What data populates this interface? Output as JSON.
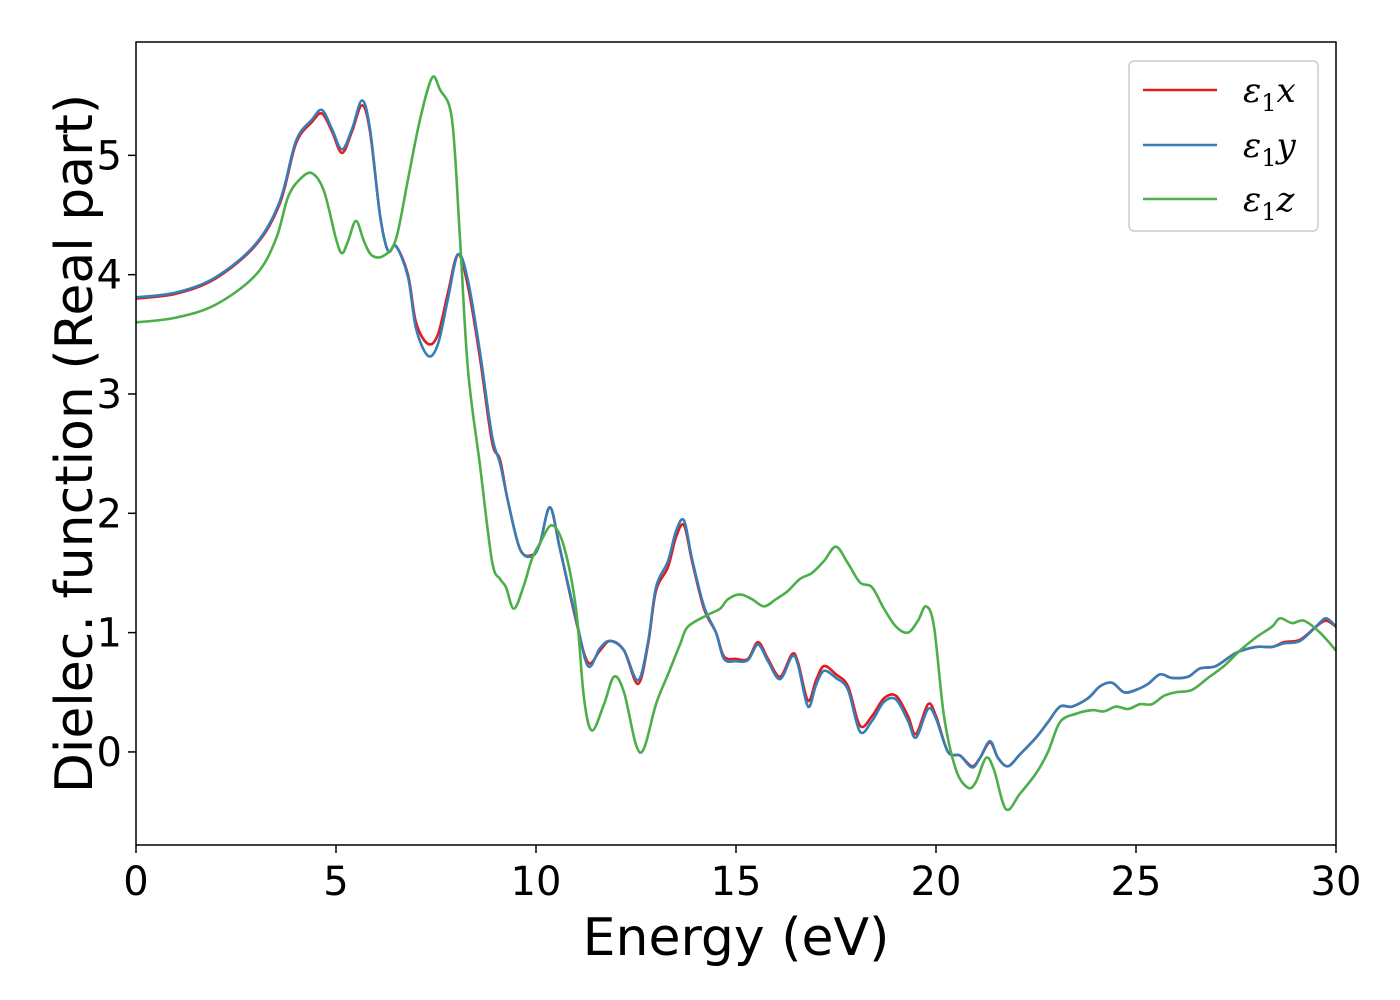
{
  "chart_data": {
    "type": "line",
    "xlabel": "Energy (eV)",
    "ylabel": "Dielec. function (Real part)",
    "xlim": [
      0,
      30
    ],
    "ylim": [
      -0.78,
      5.95
    ],
    "xticks": [
      0,
      5,
      10,
      15,
      20,
      25,
      30
    ],
    "yticks": [
      0,
      1,
      2,
      3,
      4,
      5
    ],
    "grid": false,
    "legend": {
      "placement": "top-right",
      "entries": [
        {
          "symbol": "ε",
          "sub": "1",
          "var": "x"
        },
        {
          "symbol": "ε",
          "sub": "1",
          "var": "y"
        },
        {
          "symbol": "ε",
          "sub": "1",
          "var": "z"
        }
      ]
    },
    "series": [
      {
        "color": "#e41a1c",
        "points": [
          [
            0,
            3.8
          ],
          [
            1,
            3.84
          ],
          [
            2,
            3.97
          ],
          [
            3,
            4.25
          ],
          [
            3.6,
            4.6
          ],
          [
            4,
            5.1
          ],
          [
            4.4,
            5.28
          ],
          [
            4.65,
            5.35
          ],
          [
            4.9,
            5.2
          ],
          [
            5.15,
            5.02
          ],
          [
            5.4,
            5.2
          ],
          [
            5.65,
            5.42
          ],
          [
            5.85,
            5.2
          ],
          [
            6.1,
            4.5
          ],
          [
            6.3,
            4.2
          ],
          [
            6.5,
            4.24
          ],
          [
            6.8,
            4.0
          ],
          [
            7.0,
            3.6
          ],
          [
            7.3,
            3.42
          ],
          [
            7.55,
            3.5
          ],
          [
            7.8,
            3.85
          ],
          [
            8.05,
            4.17
          ],
          [
            8.3,
            3.9
          ],
          [
            8.6,
            3.3
          ],
          [
            8.9,
            2.6
          ],
          [
            9.1,
            2.45
          ],
          [
            9.3,
            2.1
          ],
          [
            9.6,
            1.7
          ],
          [
            9.9,
            1.65
          ],
          [
            10.1,
            1.75
          ],
          [
            10.35,
            2.05
          ],
          [
            10.6,
            1.7
          ],
          [
            11.0,
            1.1
          ],
          [
            11.3,
            0.75
          ],
          [
            11.6,
            0.85
          ],
          [
            11.85,
            0.93
          ],
          [
            12.2,
            0.85
          ],
          [
            12.55,
            0.57
          ],
          [
            12.8,
            0.9
          ],
          [
            13.0,
            1.35
          ],
          [
            13.3,
            1.55
          ],
          [
            13.5,
            1.8
          ],
          [
            13.7,
            1.9
          ],
          [
            13.9,
            1.6
          ],
          [
            14.2,
            1.2
          ],
          [
            14.5,
            1.0
          ],
          [
            14.7,
            0.8
          ],
          [
            15.0,
            0.78
          ],
          [
            15.3,
            0.78
          ],
          [
            15.55,
            0.92
          ],
          [
            15.8,
            0.78
          ],
          [
            16.1,
            0.63
          ],
          [
            16.4,
            0.82
          ],
          [
            16.55,
            0.75
          ],
          [
            16.8,
            0.43
          ],
          [
            17.0,
            0.6
          ],
          [
            17.2,
            0.72
          ],
          [
            17.5,
            0.65
          ],
          [
            17.8,
            0.55
          ],
          [
            18.1,
            0.22
          ],
          [
            18.4,
            0.3
          ],
          [
            18.7,
            0.45
          ],
          [
            19.0,
            0.47
          ],
          [
            19.3,
            0.3
          ],
          [
            19.5,
            0.15
          ],
          [
            19.8,
            0.4
          ],
          [
            20.0,
            0.3
          ],
          [
            20.3,
            0.0
          ],
          [
            20.6,
            -0.03
          ],
          [
            20.9,
            -0.12
          ],
          [
            21.1,
            -0.05
          ],
          [
            21.35,
            0.08
          ],
          [
            21.55,
            -0.05
          ],
          [
            21.8,
            -0.12
          ],
          [
            22.1,
            -0.02
          ],
          [
            22.5,
            0.12
          ],
          [
            22.8,
            0.25
          ],
          [
            23.1,
            0.38
          ],
          [
            23.4,
            0.38
          ],
          [
            23.8,
            0.45
          ],
          [
            24.1,
            0.55
          ],
          [
            24.4,
            0.58
          ],
          [
            24.7,
            0.5
          ],
          [
            25.0,
            0.52
          ],
          [
            25.3,
            0.57
          ],
          [
            25.6,
            0.65
          ],
          [
            25.9,
            0.62
          ],
          [
            26.3,
            0.63
          ],
          [
            26.6,
            0.7
          ],
          [
            27.0,
            0.72
          ],
          [
            27.5,
            0.83
          ],
          [
            28.0,
            0.88
          ],
          [
            28.4,
            0.88
          ],
          [
            28.7,
            0.92
          ],
          [
            29.1,
            0.94
          ],
          [
            29.5,
            1.05
          ],
          [
            29.75,
            1.1
          ],
          [
            30.0,
            1.05
          ]
        ]
      },
      {
        "color": "#377eb8",
        "points": [
          [
            0,
            3.81
          ],
          [
            1,
            3.85
          ],
          [
            2,
            3.98
          ],
          [
            3,
            4.26
          ],
          [
            3.6,
            4.62
          ],
          [
            4,
            5.12
          ],
          [
            4.4,
            5.3
          ],
          [
            4.65,
            5.38
          ],
          [
            4.9,
            5.22
          ],
          [
            5.15,
            5.05
          ],
          [
            5.4,
            5.22
          ],
          [
            5.65,
            5.46
          ],
          [
            5.85,
            5.22
          ],
          [
            6.1,
            4.5
          ],
          [
            6.3,
            4.2
          ],
          [
            6.5,
            4.24
          ],
          [
            6.8,
            3.98
          ],
          [
            7.0,
            3.55
          ],
          [
            7.3,
            3.32
          ],
          [
            7.55,
            3.42
          ],
          [
            7.8,
            3.8
          ],
          [
            8.05,
            4.17
          ],
          [
            8.3,
            3.95
          ],
          [
            8.6,
            3.35
          ],
          [
            8.9,
            2.65
          ],
          [
            9.1,
            2.42
          ],
          [
            9.3,
            2.1
          ],
          [
            9.6,
            1.7
          ],
          [
            9.9,
            1.64
          ],
          [
            10.1,
            1.75
          ],
          [
            10.35,
            2.05
          ],
          [
            10.6,
            1.7
          ],
          [
            11.0,
            1.12
          ],
          [
            11.3,
            0.72
          ],
          [
            11.6,
            0.87
          ],
          [
            11.85,
            0.93
          ],
          [
            12.2,
            0.85
          ],
          [
            12.55,
            0.6
          ],
          [
            12.8,
            0.92
          ],
          [
            13.0,
            1.38
          ],
          [
            13.3,
            1.6
          ],
          [
            13.5,
            1.85
          ],
          [
            13.7,
            1.94
          ],
          [
            13.9,
            1.62
          ],
          [
            14.2,
            1.22
          ],
          [
            14.5,
            1.0
          ],
          [
            14.7,
            0.78
          ],
          [
            15.0,
            0.76
          ],
          [
            15.3,
            0.77
          ],
          [
            15.55,
            0.9
          ],
          [
            15.8,
            0.76
          ],
          [
            16.1,
            0.61
          ],
          [
            16.4,
            0.8
          ],
          [
            16.55,
            0.73
          ],
          [
            16.8,
            0.38
          ],
          [
            17.0,
            0.56
          ],
          [
            17.2,
            0.68
          ],
          [
            17.5,
            0.62
          ],
          [
            17.8,
            0.52
          ],
          [
            18.1,
            0.17
          ],
          [
            18.4,
            0.26
          ],
          [
            18.7,
            0.42
          ],
          [
            19.0,
            0.44
          ],
          [
            19.3,
            0.26
          ],
          [
            19.5,
            0.12
          ],
          [
            19.8,
            0.36
          ],
          [
            20.0,
            0.28
          ],
          [
            20.3,
            0.0
          ],
          [
            20.6,
            -0.03
          ],
          [
            20.9,
            -0.13
          ],
          [
            21.1,
            -0.05
          ],
          [
            21.35,
            0.09
          ],
          [
            21.55,
            -0.05
          ],
          [
            21.8,
            -0.12
          ],
          [
            22.1,
            -0.02
          ],
          [
            22.5,
            0.12
          ],
          [
            22.8,
            0.25
          ],
          [
            23.1,
            0.38
          ],
          [
            23.4,
            0.38
          ],
          [
            23.8,
            0.45
          ],
          [
            24.1,
            0.55
          ],
          [
            24.4,
            0.58
          ],
          [
            24.7,
            0.5
          ],
          [
            25.0,
            0.52
          ],
          [
            25.3,
            0.57
          ],
          [
            25.6,
            0.65
          ],
          [
            25.9,
            0.62
          ],
          [
            26.3,
            0.63
          ],
          [
            26.6,
            0.7
          ],
          [
            27.0,
            0.72
          ],
          [
            27.5,
            0.83
          ],
          [
            28.0,
            0.88
          ],
          [
            28.4,
            0.88
          ],
          [
            28.7,
            0.91
          ],
          [
            29.1,
            0.93
          ],
          [
            29.5,
            1.05
          ],
          [
            29.75,
            1.12
          ],
          [
            30.0,
            1.05
          ]
        ]
      },
      {
        "color": "#4daf4a",
        "points": [
          [
            0,
            3.6
          ],
          [
            1,
            3.64
          ],
          [
            2,
            3.75
          ],
          [
            3,
            4.0
          ],
          [
            3.5,
            4.3
          ],
          [
            3.8,
            4.65
          ],
          [
            4.1,
            4.8
          ],
          [
            4.4,
            4.85
          ],
          [
            4.7,
            4.7
          ],
          [
            5.0,
            4.3
          ],
          [
            5.15,
            4.18
          ],
          [
            5.3,
            4.28
          ],
          [
            5.5,
            4.45
          ],
          [
            5.7,
            4.28
          ],
          [
            5.9,
            4.16
          ],
          [
            6.2,
            4.16
          ],
          [
            6.5,
            4.3
          ],
          [
            6.8,
            4.8
          ],
          [
            7.1,
            5.3
          ],
          [
            7.4,
            5.65
          ],
          [
            7.6,
            5.55
          ],
          [
            7.9,
            5.3
          ],
          [
            8.1,
            4.3
          ],
          [
            8.3,
            3.2
          ],
          [
            8.6,
            2.4
          ],
          [
            8.9,
            1.6
          ],
          [
            9.1,
            1.45
          ],
          [
            9.25,
            1.38
          ],
          [
            9.45,
            1.2
          ],
          [
            9.7,
            1.4
          ],
          [
            9.9,
            1.62
          ],
          [
            10.1,
            1.75
          ],
          [
            10.4,
            1.9
          ],
          [
            10.7,
            1.72
          ],
          [
            11.0,
            1.2
          ],
          [
            11.2,
            0.45
          ],
          [
            11.4,
            0.18
          ],
          [
            11.7,
            0.4
          ],
          [
            11.95,
            0.63
          ],
          [
            12.2,
            0.5
          ],
          [
            12.5,
            0.06
          ],
          [
            12.7,
            0.03
          ],
          [
            13.0,
            0.4
          ],
          [
            13.3,
            0.65
          ],
          [
            13.6,
            0.9
          ],
          [
            13.8,
            1.05
          ],
          [
            14.3,
            1.15
          ],
          [
            14.6,
            1.2
          ],
          [
            14.8,
            1.28
          ],
          [
            15.1,
            1.32
          ],
          [
            15.4,
            1.28
          ],
          [
            15.7,
            1.22
          ],
          [
            16.0,
            1.28
          ],
          [
            16.3,
            1.35
          ],
          [
            16.6,
            1.45
          ],
          [
            16.9,
            1.5
          ],
          [
            17.2,
            1.6
          ],
          [
            17.5,
            1.72
          ],
          [
            17.8,
            1.58
          ],
          [
            18.1,
            1.42
          ],
          [
            18.4,
            1.38
          ],
          [
            18.7,
            1.2
          ],
          [
            19.0,
            1.05
          ],
          [
            19.3,
            1.0
          ],
          [
            19.55,
            1.1
          ],
          [
            19.75,
            1.22
          ],
          [
            19.95,
            1.05
          ],
          [
            20.2,
            0.3
          ],
          [
            20.5,
            -0.15
          ],
          [
            20.8,
            -0.3
          ],
          [
            21.0,
            -0.25
          ],
          [
            21.25,
            -0.05
          ],
          [
            21.45,
            -0.15
          ],
          [
            21.75,
            -0.48
          ],
          [
            22.1,
            -0.35
          ],
          [
            22.5,
            -0.18
          ],
          [
            22.8,
            0.0
          ],
          [
            23.1,
            0.25
          ],
          [
            23.5,
            0.32
          ],
          [
            23.9,
            0.35
          ],
          [
            24.2,
            0.34
          ],
          [
            24.5,
            0.38
          ],
          [
            24.8,
            0.36
          ],
          [
            25.1,
            0.4
          ],
          [
            25.4,
            0.4
          ],
          [
            25.7,
            0.47
          ],
          [
            26.0,
            0.5
          ],
          [
            26.4,
            0.52
          ],
          [
            26.8,
            0.62
          ],
          [
            27.2,
            0.72
          ],
          [
            27.6,
            0.85
          ],
          [
            28.0,
            0.96
          ],
          [
            28.4,
            1.05
          ],
          [
            28.6,
            1.12
          ],
          [
            28.9,
            1.08
          ],
          [
            29.2,
            1.1
          ],
          [
            29.6,
            1.0
          ],
          [
            30.0,
            0.85
          ]
        ]
      }
    ]
  }
}
